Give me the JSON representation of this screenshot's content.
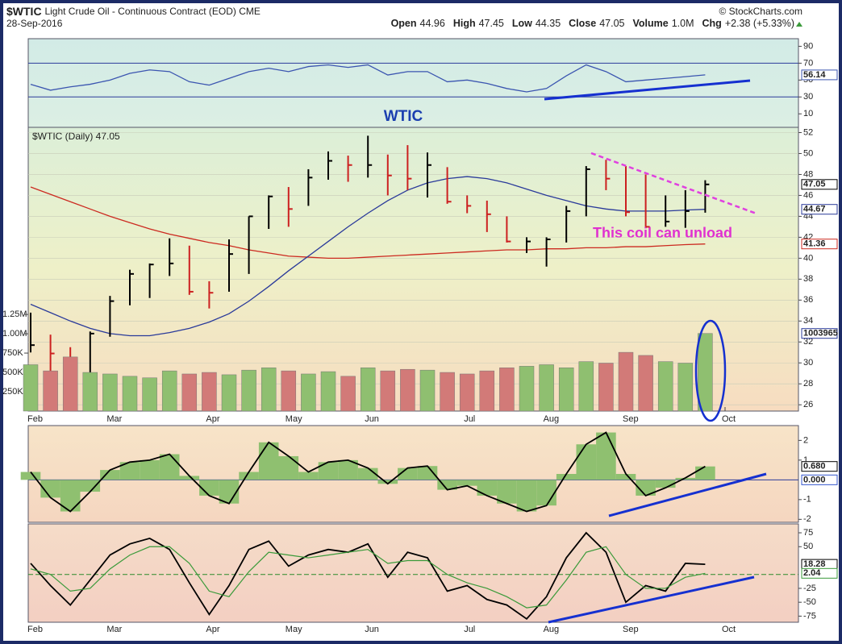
{
  "header": {
    "symbol": "$WTIC",
    "name": "Light Crude Oil - Continuous Contract (EOD) CME",
    "date": "28-Sep-2016",
    "copyright": "© StockCharts.com",
    "quote": [
      {
        "label": "Open",
        "value": "44.96"
      },
      {
        "label": "High",
        "value": "47.45"
      },
      {
        "label": "Low",
        "value": "44.35"
      },
      {
        "label": "Close",
        "value": "47.05"
      },
      {
        "label": "Volume",
        "value": "1.0M"
      },
      {
        "label": "Chg",
        "value": "+2.38 (+5.33%)"
      }
    ]
  },
  "chart_data": [
    {
      "type": "line",
      "color": "#3b55b0",
      "ylim": [
        -6,
        99
      ],
      "yticks": [
        10,
        30,
        50,
        70,
        90
      ],
      "reference_lines": [
        30,
        70
      ],
      "values": [
        45,
        38,
        42,
        45,
        50,
        58,
        62,
        60,
        48,
        44,
        52,
        60,
        64,
        60,
        66,
        68,
        65,
        68,
        56,
        60,
        60,
        48,
        50,
        46,
        40,
        36,
        40,
        55,
        68,
        60,
        48,
        50,
        52,
        54,
        56.14,
        null,
        null
      ]
    },
    {
      "type": "ohlc",
      "title": "WTIC",
      "legend": "$WTIC (Daily) 47.05",
      "annotation": "This coil can unload",
      "up_color": "#000000",
      "down_color": "#cc2020",
      "grid": true,
      "ylim": [
        25.4,
        52.5
      ],
      "yticks": [
        26,
        28,
        30,
        32,
        34,
        36,
        38,
        40,
        42,
        44,
        46,
        48,
        50,
        52
      ],
      "categories": [
        "Feb",
        null,
        null,
        null,
        "Mar",
        null,
        null,
        null,
        null,
        "Apr",
        null,
        null,
        null,
        "May",
        null,
        null,
        null,
        "Jun",
        null,
        null,
        null,
        null,
        "Jul",
        null,
        null,
        null,
        "Aug",
        null,
        null,
        null,
        "Sep",
        null,
        null,
        null,
        null,
        "Oct",
        null
      ],
      "high": [
        34.8,
        32.7,
        31.5,
        33,
        36.4,
        38.9,
        39.5,
        41.9,
        41.2,
        37.8,
        41.8,
        44,
        46,
        46.8,
        48.5,
        50.2,
        49.8,
        51.7,
        49.9,
        50.8,
        50.1,
        48.7,
        46,
        45.5,
        44,
        42,
        42,
        45,
        48.8,
        49.4,
        48.8,
        48,
        46,
        46.5,
        47.45,
        null,
        null
      ],
      "low": [
        31,
        29.2,
        26.1,
        28.5,
        32.5,
        35.5,
        36.2,
        38.3,
        36.5,
        35.2,
        36.8,
        38.5,
        42.8,
        43,
        45,
        47.5,
        47.3,
        47.7,
        46,
        46.5,
        45.8,
        45.2,
        44.3,
        42.5,
        41.5,
        40.5,
        39.2,
        41.5,
        44,
        46.5,
        44,
        43,
        43,
        42.9,
        44.35,
        null,
        null
      ],
      "close": [
        31.7,
        30.9,
        29.4,
        32.8,
        35.9,
        38.5,
        39.4,
        39.5,
        36.8,
        36.7,
        40.4,
        44,
        45.9,
        44.7,
        47.7,
        49.3,
        48.9,
        48.9,
        47.9,
        47.6,
        48.9,
        45.4,
        45,
        44.2,
        41.6,
        41.6,
        41.8,
        44.5,
        48.5,
        47.6,
        44.4,
        43,
        43.5,
        44.5,
        47.05,
        null,
        null
      ],
      "series": [
        {
          "color": "#cc2a20",
          "values": [
            46.8,
            46.1,
            45.4,
            44.7,
            44,
            43.4,
            42.8,
            42.3,
            41.9,
            41.5,
            41.2,
            40.8,
            40.5,
            40.2,
            40.1,
            40,
            40,
            40.1,
            40.2,
            40.3,
            40.4,
            40.5,
            40.6,
            40.7,
            40.8,
            40.8,
            40.9,
            40.9,
            41,
            41,
            41.1,
            41.1,
            41.2,
            41.3,
            41.36,
            null,
            null
          ]
        },
        {
          "color": "#2a3a9a",
          "values": [
            35.6,
            34.8,
            34,
            33.3,
            32.8,
            32.6,
            32.6,
            32.9,
            33.3,
            33.9,
            34.7,
            35.9,
            37.3,
            38.8,
            40.2,
            41.6,
            43,
            44.3,
            45.5,
            46.5,
            47.2,
            47.6,
            47.8,
            47.6,
            47.2,
            46.6,
            46,
            45.5,
            45,
            44.7,
            44.5,
            44.5,
            44.5,
            44.6,
            44.67,
            null,
            null
          ]
        }
      ]
    },
    {
      "type": "bar",
      "up_color": "#8fbf70",
      "down_color": "#d27a78",
      "ylim": [
        0,
        3670000
      ],
      "yticks": [
        {
          "value": 250000,
          "label": "250K"
        },
        {
          "value": 500000,
          "label": "500K"
        },
        {
          "value": 750000,
          "label": "750K"
        },
        {
          "value": 1000000,
          "label": "1.00M"
        },
        {
          "value": 1250000,
          "label": "1.25M"
        }
      ],
      "values": [
        600000,
        520000,
        700000,
        500000,
        480000,
        450000,
        430000,
        520000,
        480000,
        500000,
        470000,
        530000,
        560000,
        520000,
        480000,
        510000,
        450000,
        560000,
        520000,
        540000,
        530000,
        500000,
        480000,
        520000,
        560000,
        580000,
        600000,
        560000,
        640000,
        620000,
        760000,
        720000,
        640000,
        620000,
        1003965,
        null,
        null
      ]
    },
    {
      "type": "histogram",
      "color": "#8fc070",
      "ylim": [
        -2.15,
        2.75
      ],
      "yticks": [
        -2,
        -1,
        1,
        2
      ],
      "reference_lines": [
        {
          "value": 0,
          "label": "0.000"
        }
      ],
      "values": [
        0.4,
        -0.9,
        -1.6,
        -0.6,
        0.5,
        0.9,
        1,
        1.3,
        0.2,
        -0.8,
        -1.2,
        0.4,
        1.9,
        1.2,
        0.4,
        0.9,
        1,
        0.6,
        -0.2,
        0.6,
        0.7,
        -0.5,
        -0.3,
        -0.8,
        -1.2,
        -1.6,
        -1.3,
        0.3,
        1.8,
        2.4,
        0.3,
        -0.8,
        -0.4,
        0.1,
        0.68,
        null,
        null
      ],
      "value_labels": [
        null,
        null,
        null,
        null,
        null,
        null,
        null,
        null,
        null,
        null,
        null,
        null,
        null,
        null,
        null,
        null,
        null,
        null,
        null,
        null,
        null,
        null,
        null,
        null,
        null,
        null,
        null,
        null,
        null,
        null,
        null,
        null,
        null,
        null,
        "0.680",
        null,
        null
      ]
    },
    {
      "type": "line",
      "ylim": [
        -86,
        91
      ],
      "yticks": [
        -75,
        -50,
        -25,
        50,
        75
      ],
      "reference_lines": [
        0
      ],
      "series": [
        {
          "color": "#000000",
          "values": [
            20,
            -20,
            -55,
            -10,
            35,
            55,
            65,
            45,
            -15,
            -72,
            -20,
            45,
            60,
            15,
            35,
            45,
            40,
            55,
            -5,
            40,
            30,
            -30,
            -20,
            -45,
            -55,
            -80,
            -40,
            30,
            75,
            40,
            -50,
            -20,
            -30,
            20,
            18.28,
            null,
            null
          ]
        },
        {
          "color": "#3a9a3a",
          "values": [
            10,
            0,
            -30,
            -25,
            10,
            35,
            50,
            50,
            20,
            -30,
            -40,
            5,
            40,
            35,
            30,
            35,
            40,
            45,
            20,
            25,
            25,
            0,
            -15,
            -25,
            -40,
            -60,
            -55,
            -10,
            40,
            50,
            0,
            -25,
            -25,
            -5,
            2.04,
            null,
            null
          ]
        }
      ]
    }
  ]
}
